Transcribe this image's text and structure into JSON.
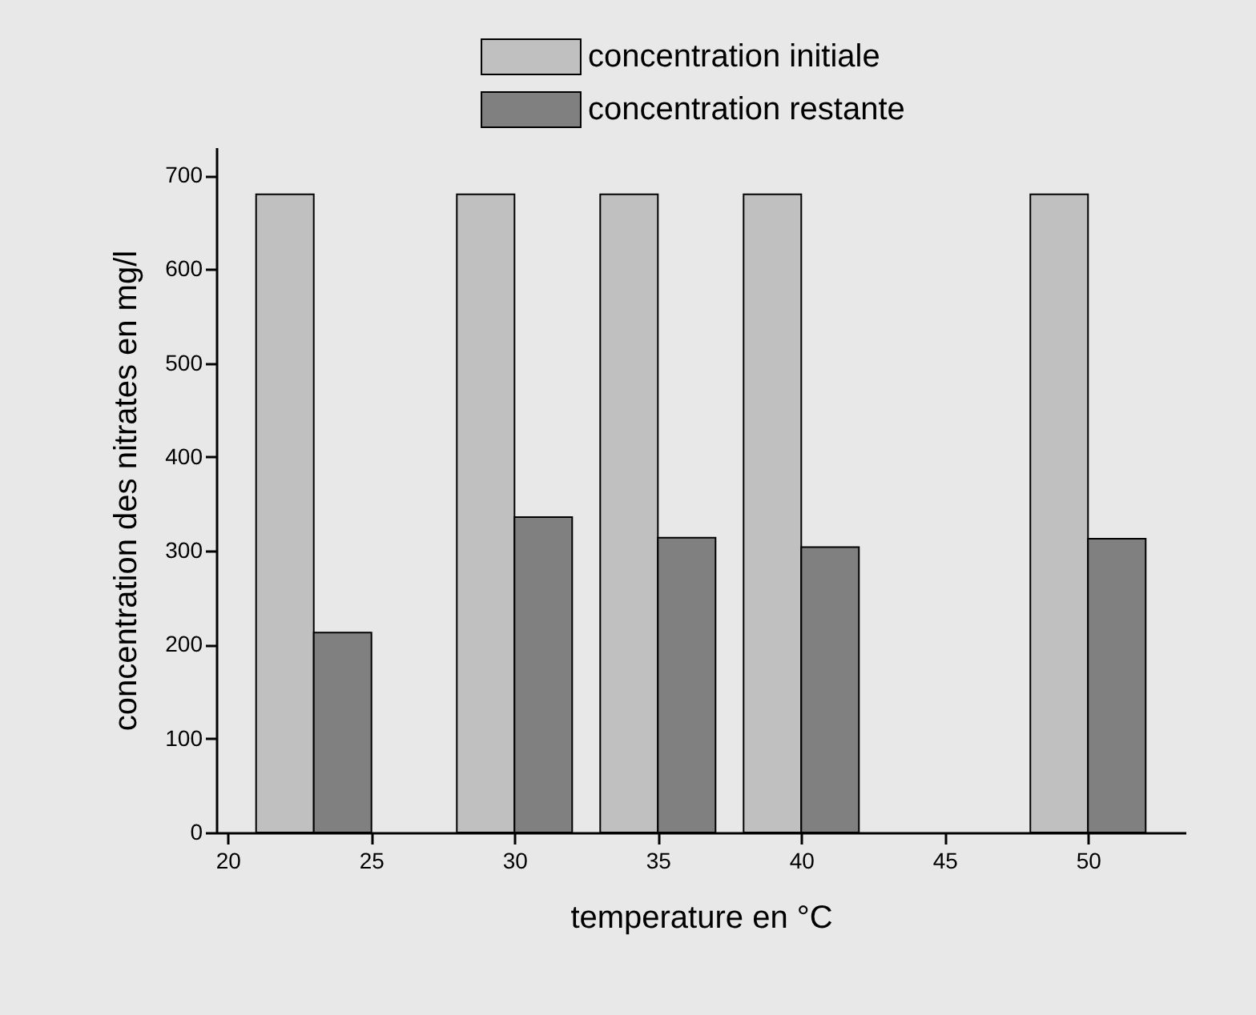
{
  "chart_data": {
    "type": "bar",
    "xlabel": "temperature en °C",
    "ylabel": "concentration des nitrates en mg/l",
    "x": [
      23,
      30,
      35,
      40,
      50
    ],
    "series": [
      {
        "name": "concentration initiale",
        "color": "#c0c0c0",
        "values": [
          680,
          680,
          680,
          680,
          680
        ]
      },
      {
        "name": "concentration restante",
        "color": "#808080",
        "values": [
          213,
          336,
          314,
          304,
          313
        ]
      }
    ],
    "xlim": [
      19.6,
      53.4
    ],
    "xticks": [
      20,
      25,
      30,
      35,
      40,
      45,
      50
    ],
    "ylim": [
      0,
      730
    ],
    "yticks": [
      0,
      100,
      200,
      300,
      400,
      500,
      600,
      700
    ],
    "legend": "top"
  }
}
